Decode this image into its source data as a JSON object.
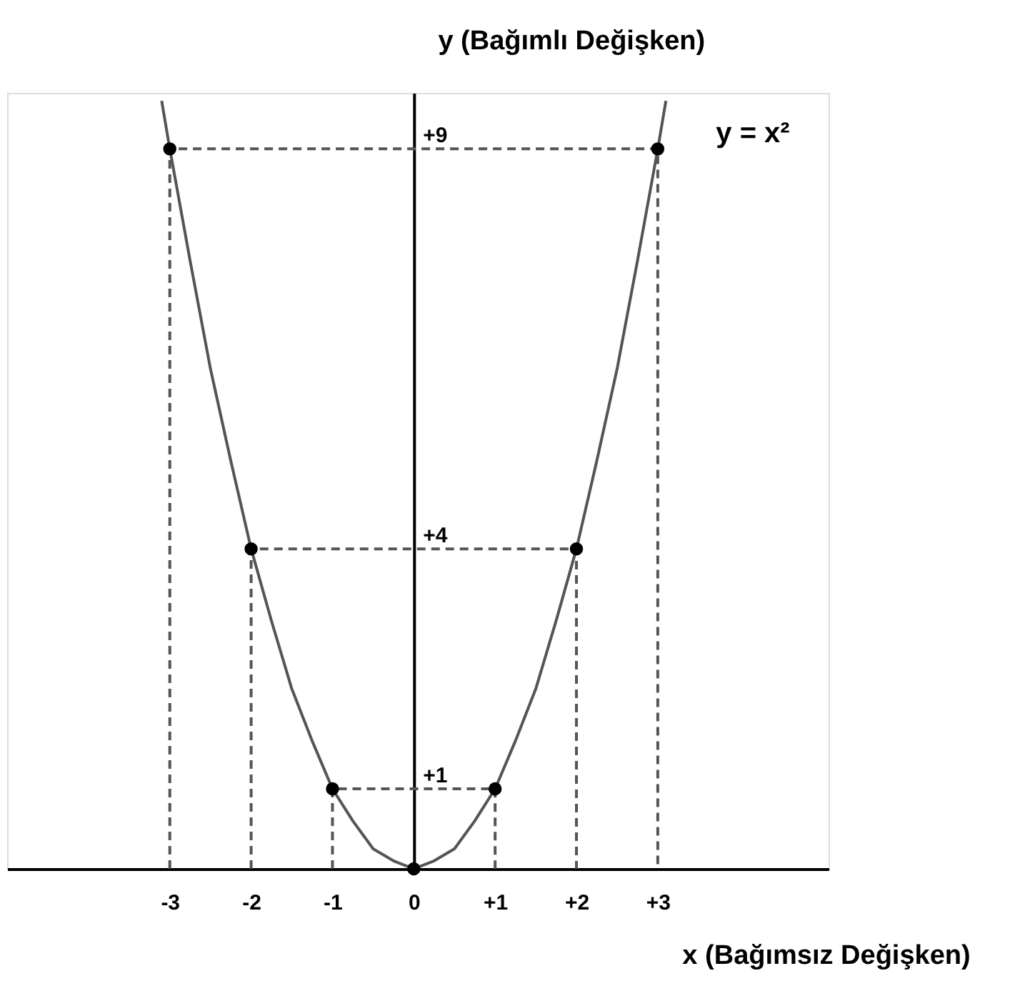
{
  "chart_data": {
    "type": "line",
    "xlabel": "x (Bağımsız Değişken)",
    "ylabel": "y (Bağımlı Değişken)",
    "xlim": [
      -5,
      5.1
    ],
    "ylim": [
      0,
      9.7
    ],
    "xticks": [
      -3,
      -2,
      -1,
      0,
      {
        "value": 1,
        "label": "+1"
      },
      {
        "value": 2,
        "label": "+2"
      },
      {
        "value": 3,
        "label": "+3"
      }
    ],
    "yticks": [
      {
        "value": 1,
        "label": "+1"
      },
      {
        "value": 4,
        "label": "+4"
      },
      {
        "value": 9,
        "label": "+9"
      }
    ],
    "grid": false,
    "legend": false,
    "series": [
      {
        "line_style": "dashed",
        "color": "#555555",
        "x": [
          -3,
          -3,
          3,
          3
        ],
        "values": [
          0,
          9,
          9,
          0
        ]
      },
      {
        "line_style": "dashed",
        "color": "#555555",
        "x": [
          -2,
          -2,
          2,
          2
        ],
        "values": [
          0,
          4,
          4,
          0
        ]
      },
      {
        "line_style": "dashed",
        "color": "#555555",
        "x": [
          -1,
          -1,
          1,
          1
        ],
        "values": [
          0,
          1,
          1,
          0
        ]
      },
      {
        "name": "y = x²",
        "line_style": "solid",
        "color": "#555555",
        "x": [
          -3.1,
          -3,
          -2.75,
          -2.5,
          -2.25,
          -2,
          -1.75,
          -1.5,
          -1.25,
          -1,
          -0.75,
          -0.5,
          -0.25,
          0,
          0.25,
          0.5,
          0.75,
          1,
          1.25,
          1.5,
          1.75,
          2,
          2.25,
          2.5,
          2.75,
          3,
          3.1
        ],
        "values": [
          9.6,
          9,
          7.6,
          6.25,
          5.1,
          4,
          3.1,
          2.25,
          1.6,
          1,
          0.6,
          0.25,
          0.1,
          0,
          0.1,
          0.25,
          0.6,
          1,
          1.6,
          2.25,
          3.1,
          4,
          5.1,
          6.25,
          7.6,
          9,
          9.6
        ]
      },
      {
        "type": "scatter",
        "marker": "circle",
        "color": "#000000",
        "x": [
          -3,
          -2,
          -1,
          0,
          1,
          2,
          3
        ],
        "values": [
          9,
          4,
          1,
          0,
          1,
          4,
          9
        ]
      }
    ]
  }
}
